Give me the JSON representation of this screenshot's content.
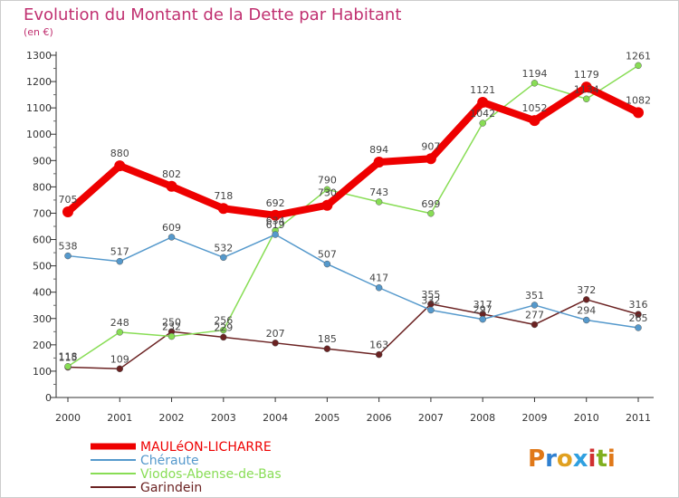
{
  "chart_data": {
    "type": "line",
    "title": "Evolution du Montant de la Dette par Habitant",
    "subtitle": "(en €)",
    "x": [
      "2000",
      "2001",
      "2002",
      "2003",
      "2004",
      "2005",
      "2006",
      "2007",
      "2008",
      "2009",
      "2010",
      "2011"
    ],
    "ylim": [
      0,
      1300
    ],
    "yticks": [
      0,
      100,
      200,
      300,
      400,
      500,
      600,
      700,
      800,
      900,
      1000,
      1100,
      1200,
      1300
    ],
    "grid": false,
    "legend_placement": "bottom-left",
    "series": [
      {
        "name": "MAULéON-LICHARRE",
        "color": "#ee0000",
        "values": [
          705,
          880,
          802,
          718,
          692,
          730,
          894,
          907,
          1121,
          1052,
          1179,
          1082
        ]
      },
      {
        "name": "Chéraute",
        "color": "#5599cc",
        "values": [
          538,
          517,
          609,
          532,
          619,
          507,
          417,
          332,
          297,
          351,
          294,
          265
        ]
      },
      {
        "name": "Viodos-Abense-de-Bas",
        "color": "#88dd55",
        "values": [
          118,
          248,
          232,
          256,
          634,
          790,
          743,
          699,
          1042,
          1194,
          1134,
          1261
        ]
      },
      {
        "name": "Garindein",
        "color": "#6b2222",
        "values": [
          115,
          109,
          250,
          229,
          207,
          185,
          163,
          355,
          317,
          277,
          372,
          316
        ]
      }
    ]
  },
  "logo": {
    "text": "Proxiti"
  }
}
